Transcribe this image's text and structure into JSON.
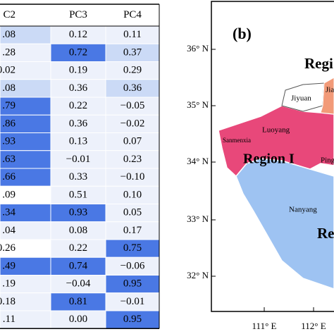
{
  "table": {
    "header": [
      "C2",
      "PC3",
      "PC4"
    ],
    "rows": [
      [
        ".08",
        "0.12",
        "0.11"
      ],
      [
        ".28",
        "0.72",
        "0.37"
      ],
      [
        "0.02",
        "0.19",
        "0.29"
      ],
      [
        ".08",
        "0.36",
        "0.36"
      ],
      [
        ".79",
        "0.22",
        "−0.05"
      ],
      [
        ".86",
        "0.36",
        "−0.02"
      ],
      [
        ".93",
        "0.13",
        "0.07"
      ],
      [
        ".63",
        "−0.01",
        "0.23"
      ],
      [
        ".66",
        "0.33",
        "−0.10"
      ],
      [
        ".09",
        "0.51",
        "0.10"
      ],
      [
        ".34",
        "0.93",
        "0.05"
      ],
      [
        ".04",
        "0.08",
        "0.17"
      ],
      [
        "0.26",
        "0.22",
        "0.75"
      ],
      [
        ".49",
        "0.74",
        "−0.06"
      ],
      [
        ".19",
        "−0.04",
        "0.95"
      ],
      [
        "0.18",
        "0.81",
        "−0.01"
      ],
      [
        ".11",
        "0.00",
        "0.95"
      ]
    ],
    "cell_colors": [
      [
        "#cbdaf6",
        "#edf1fb",
        "#edf1fb"
      ],
      [
        "#edf1fb",
        "#4a78e4",
        "#cbdaf6"
      ],
      [
        "#edf1fb",
        "#edf1fb",
        "#edf1fb"
      ],
      [
        "#cbdaf6",
        "#edf1fb",
        "#cbdaf6"
      ],
      [
        "#4a78e4",
        "#edf1fb",
        "#edf1fb"
      ],
      [
        "#4a78e4",
        "#edf1fb",
        "#edf1fb"
      ],
      [
        "#4a78e4",
        "#edf1fb",
        "#edf1fb"
      ],
      [
        "#4a78e4",
        "#edf1fb",
        "#edf1fb"
      ],
      [
        "#4a78e4",
        "#edf1fb",
        "#edf1fb"
      ],
      [
        "#ffffff",
        "#edf1fb",
        "#edf1fb"
      ],
      [
        "#4a78e4",
        "#4a78e4",
        "#edf1fb"
      ],
      [
        "#edf1fb",
        "#edf1fb",
        "#edf1fb"
      ],
      [
        "#ffffff",
        "#edf1fb",
        "#4a78e4"
      ],
      [
        "#4a78e4",
        "#4a78e4",
        "#edf1fb"
      ],
      [
        "#edf1fb",
        "#edf1fb",
        "#4a78e4"
      ],
      [
        "#edf1fb",
        "#4a78e4",
        "#edf1fb"
      ],
      [
        "#edf1fb",
        "#edf1fb",
        "#4a78e4"
      ]
    ]
  },
  "map": {
    "panel_label": "(b)",
    "lat_labels": [
      "36° N",
      "35° N",
      "34° N",
      "33° N",
      "32° N"
    ],
    "lon_labels": [
      "111° E",
      "112° E"
    ],
    "region_labels": [
      "Regi",
      "Region I",
      "Re"
    ],
    "place_labels": [
      "Jiyuan",
      "Jia",
      "Sanmenxia",
      "Luoyang",
      "Ping",
      "Nanyang"
    ]
  }
}
